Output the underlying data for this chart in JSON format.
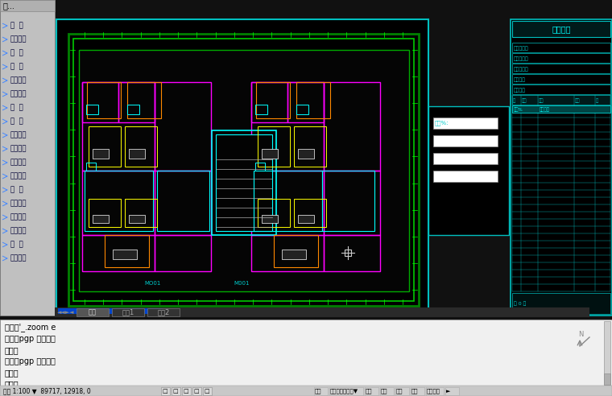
{
  "bg_color": "#111111",
  "fig_width": 7.6,
  "fig_height": 4.92,
  "left_panel": {
    "bg": "#c0c0c0",
    "title": "天...",
    "menu_items": [
      "设  置",
      "轴网柱子",
      "墙  体",
      "门  窗",
      "房间屋顶",
      "楼梯其他",
      "立  面",
      "剖  面",
      "文字表格",
      "尺寸标注",
      "符号标注",
      "图层控制",
      "工  具",
      "三维建模",
      "图块图案",
      "文件布图",
      "其  它",
      "帮助演示"
    ]
  },
  "command_panel": {
    "bg": "#f0f0f0",
    "lines": [
      "命令：'_.zoom e",
      "命令：pgp 参数太多",
      "命令：",
      "命令：pgp 参数太多",
      "命令：",
      "命令："
    ],
    "text_color": "#000000",
    "font_size": 7
  },
  "status_bar": {
    "bg": "#c8c8c8",
    "text": "比例 1:100 ▼  89717, 12918, 0",
    "right_items": [
      "模型",
      "二维草图与注释▼",
      "编组",
      "基线",
      "捕捉",
      "加粗",
      "动态标注",
      "►"
    ],
    "font_size": 5
  },
  "tabs": [
    "模型",
    "布局1",
    "布局2"
  ],
  "right_panel": {
    "title": "图纸目录",
    "title_color": "#00ffff",
    "grid_color": "#00bfbf",
    "sub_headers": [
      "工程名称：",
      "建设单位：",
      "设计单位：",
      "负责人：",
      "审核人："
    ]
  },
  "scroll_bar_color": "#0044cc",
  "border_color": "#00bfbf",
  "green_border": "#008000",
  "green2": "#00cc00"
}
